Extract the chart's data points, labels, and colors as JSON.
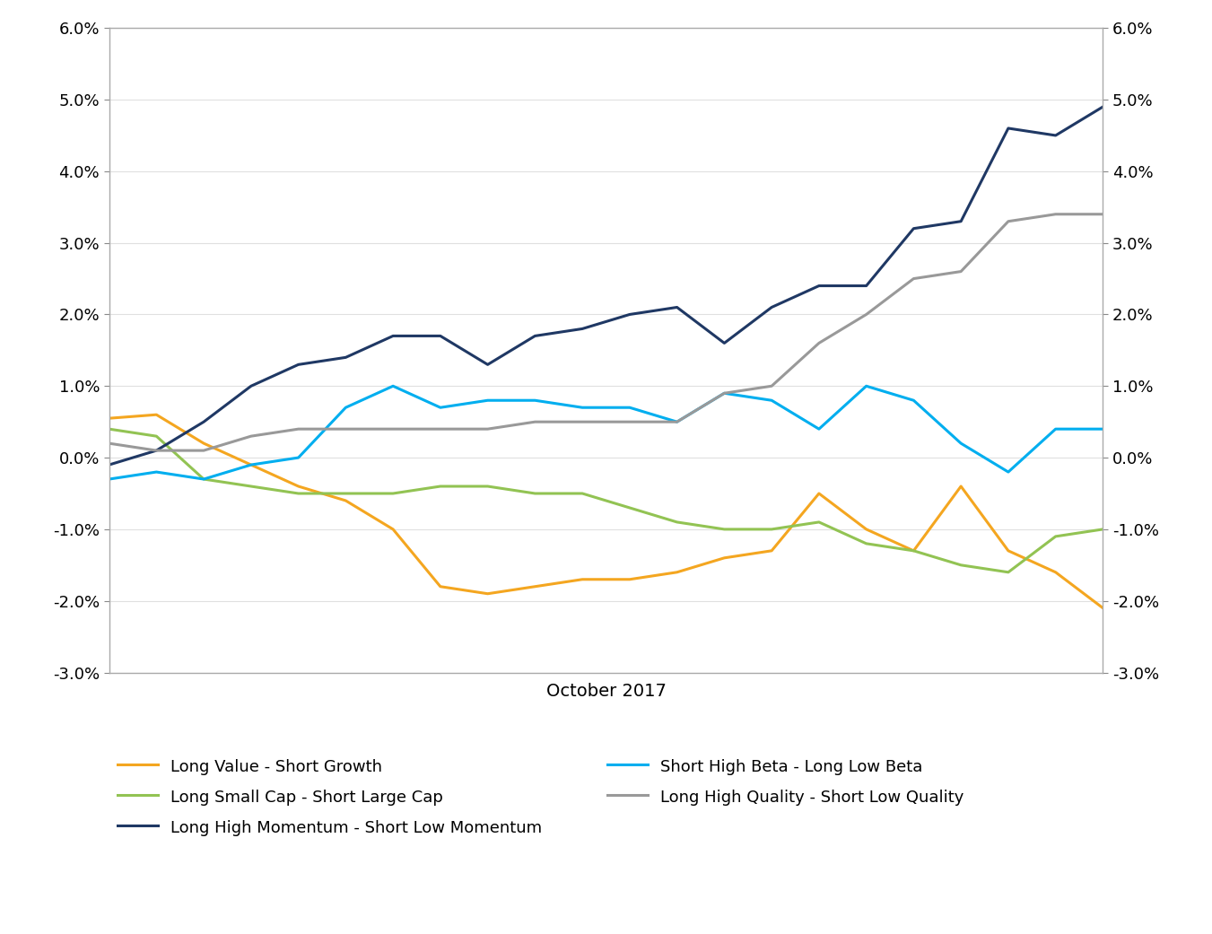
{
  "xlabel": "October 2017",
  "ylim": [
    -0.03,
    0.06
  ],
  "yticks": [
    -0.03,
    -0.02,
    -0.01,
    0.0,
    0.01,
    0.02,
    0.03,
    0.04,
    0.05,
    0.06
  ],
  "line_width": 2.2,
  "xlabel_fontsize": 14,
  "tick_fontsize": 13,
  "legend_fontsize": 13,
  "series": {
    "Long Value - Short Growth": {
      "color": "#F4A620",
      "values": [
        0.0055,
        0.006,
        0.002,
        -0.001,
        -0.004,
        -0.006,
        -0.01,
        -0.018,
        -0.019,
        -0.018,
        -0.017,
        -0.017,
        -0.016,
        -0.014,
        -0.013,
        -0.005,
        -0.01,
        -0.013,
        -0.004,
        -0.013,
        -0.016,
        -0.021
      ]
    },
    "Long Small Cap - Short Large Cap": {
      "color": "#92C353",
      "values": [
        0.004,
        0.003,
        -0.003,
        -0.004,
        -0.005,
        -0.005,
        -0.005,
        -0.004,
        -0.004,
        -0.005,
        -0.005,
        -0.007,
        -0.009,
        -0.01,
        -0.01,
        -0.009,
        -0.012,
        -0.013,
        -0.015,
        -0.016,
        -0.011,
        -0.01
      ]
    },
    "Long High Momentum - Short Low Momentum": {
      "color": "#1F3864",
      "values": [
        -0.001,
        0.001,
        0.005,
        0.01,
        0.013,
        0.014,
        0.017,
        0.017,
        0.013,
        0.017,
        0.018,
        0.02,
        0.021,
        0.016,
        0.021,
        0.024,
        0.024,
        0.032,
        0.033,
        0.046,
        0.045,
        0.049
      ]
    },
    "Short High Beta - Long Low Beta": {
      "color": "#00AEEF",
      "values": [
        -0.003,
        -0.002,
        -0.003,
        -0.001,
        0.0,
        0.007,
        0.01,
        0.007,
        0.008,
        0.008,
        0.007,
        0.007,
        0.005,
        0.009,
        0.008,
        0.004,
        0.01,
        0.008,
        0.002,
        -0.002,
        0.004,
        0.004
      ]
    },
    "Long High Quality - Short Low Quality": {
      "color": "#999999",
      "values": [
        0.002,
        0.001,
        0.001,
        0.003,
        0.004,
        0.004,
        0.004,
        0.004,
        0.004,
        0.005,
        0.005,
        0.005,
        0.005,
        0.009,
        0.01,
        0.016,
        0.02,
        0.025,
        0.026,
        0.033,
        0.034,
        0.034
      ]
    }
  },
  "legend_col1": [
    "Long Value - Short Growth",
    "Long High Momentum - Short Low Momentum",
    "Long High Quality - Short Low Quality"
  ],
  "legend_col2": [
    "Long Small Cap - Short Large Cap",
    "Short High Beta - Long Low Beta",
    ""
  ]
}
